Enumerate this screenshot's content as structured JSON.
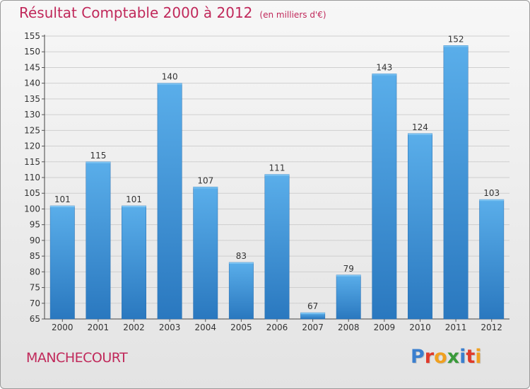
{
  "header": {
    "title": "Résultat Comptable 2000 à 2012",
    "subtitle": "(en milliers d'€)"
  },
  "footer": {
    "place": "MANCHECOURT",
    "logo": "Proxiti",
    "logo_colors": [
      "#3a7fcf",
      "#e03a2a",
      "#f0a020",
      "#3a9a3a",
      "#3a7fcf",
      "#e03a2a",
      "#f0a020"
    ]
  },
  "chart_data": {
    "type": "bar",
    "categories": [
      "2000",
      "2001",
      "2002",
      "2003",
      "2004",
      "2005",
      "2006",
      "2007",
      "2008",
      "2009",
      "2010",
      "2011",
      "2012"
    ],
    "values": [
      101,
      115,
      101,
      140,
      107,
      83,
      111,
      67,
      79,
      143,
      124,
      152,
      103
    ],
    "ylim": [
      65,
      155
    ],
    "yticks": [
      65,
      70,
      75,
      80,
      85,
      90,
      95,
      100,
      105,
      110,
      115,
      120,
      125,
      130,
      135,
      140,
      145,
      150,
      155
    ],
    "grid": true,
    "bar_color": "#3a8fd6"
  }
}
